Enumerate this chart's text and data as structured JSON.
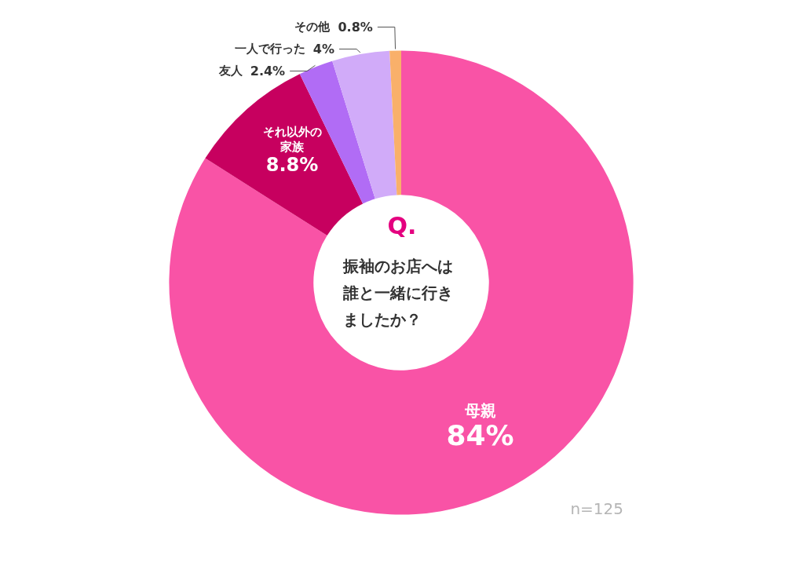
{
  "chart_data": {
    "type": "donut",
    "title": "Q.",
    "subtitle": "振袖のお店へは誰と一緒に行きましたか？",
    "categories": [
      "母親",
      "それ以外の家族",
      "友人",
      "一人で行った",
      "その他"
    ],
    "values": [
      84,
      8.8,
      2.4,
      4,
      0.8
    ],
    "colors": [
      "#f953a6",
      "#c7005f",
      "#b16cf5",
      "#d1abf9",
      "#f9b06a"
    ],
    "value_labels": [
      "84%",
      "8.8%",
      "2.4%",
      "4%",
      "0.8%"
    ],
    "annotations": [
      "n=125"
    ],
    "legend": false
  }
}
